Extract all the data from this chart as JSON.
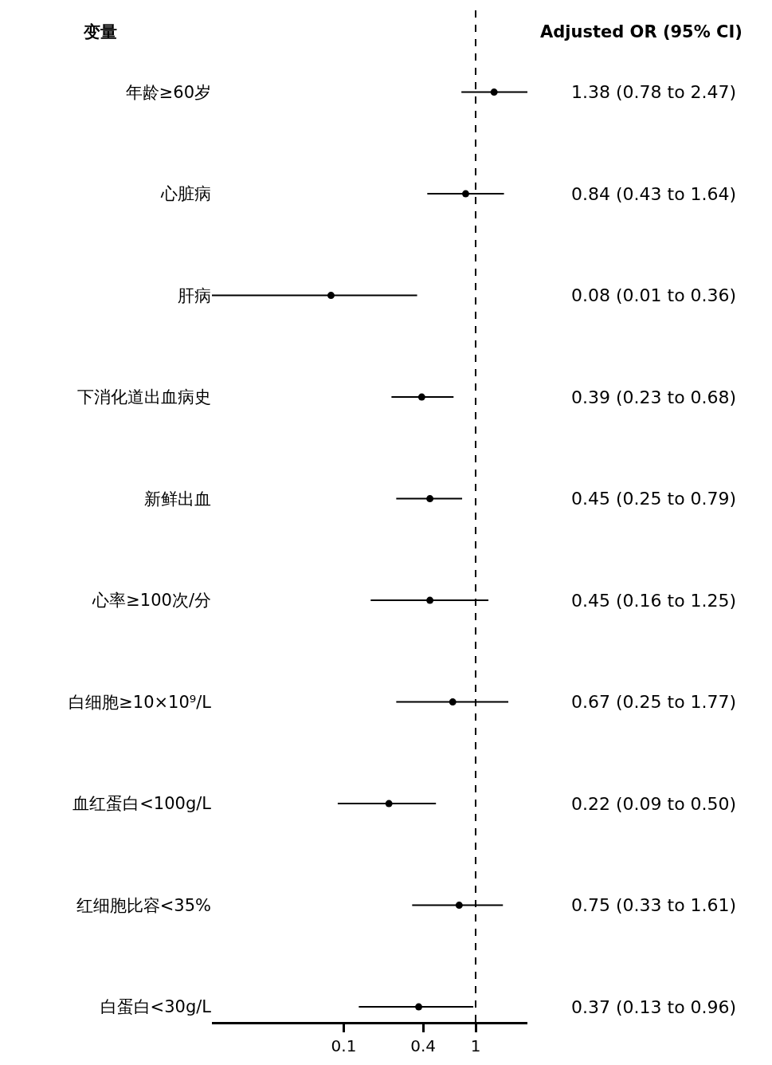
{
  "chart_data": {
    "type": "scatter",
    "orientation": "horizontal",
    "log": "x",
    "categories": [
      "年龄≥60岁",
      "心脏病",
      "肝病",
      "下消化道出血病史",
      "新鲜出血",
      "心率≥100次/分",
      "白细胞≥10×10⁹/L",
      "血红蛋白<100g/L",
      "红细胞比容<35%",
      "白蛋白<30g/L"
    ],
    "values": [
      1.38,
      0.84,
      0.08,
      0.39,
      0.45,
      0.45,
      0.67,
      0.22,
      0.75,
      0.37
    ],
    "errors": [
      [
        0.78,
        2.47
      ],
      [
        0.43,
        1.64
      ],
      [
        0.01,
        0.36
      ],
      [
        0.23,
        0.68
      ],
      [
        0.25,
        0.79
      ],
      [
        0.16,
        1.25
      ],
      [
        0.25,
        1.77
      ],
      [
        0.09,
        0.5
      ],
      [
        0.33,
        1.61
      ],
      [
        0.13,
        0.96
      ]
    ],
    "value_labels": [
      "1.38 (0.78 to 2.47)",
      "0.84 (0.43 to 1.64)",
      "0.08 (0.01 to 0.36)",
      "0.39 (0.23 to 0.68)",
      "0.45 (0.25 to 0.79)",
      "0.45 (0.16 to 1.25)",
      "0.67 (0.25 to 1.77)",
      "0.22 (0.09 to 0.50)",
      "0.75 (0.33 to 1.61)",
      "0.37 (0.13 to 0.96)"
    ],
    "color": "#000000",
    "marker": "circle",
    "xlim": [
      0.01,
      2.47
    ],
    "xticks": [
      0.1,
      0.4,
      1
    ],
    "ref_lines": [
      {
        "axis": "x",
        "value": 1,
        "line_style": "dashed",
        "color": "#000000"
      }
    ],
    "annotations": [
      "变量",
      "Adjusted OR (95% CI)"
    ]
  }
}
